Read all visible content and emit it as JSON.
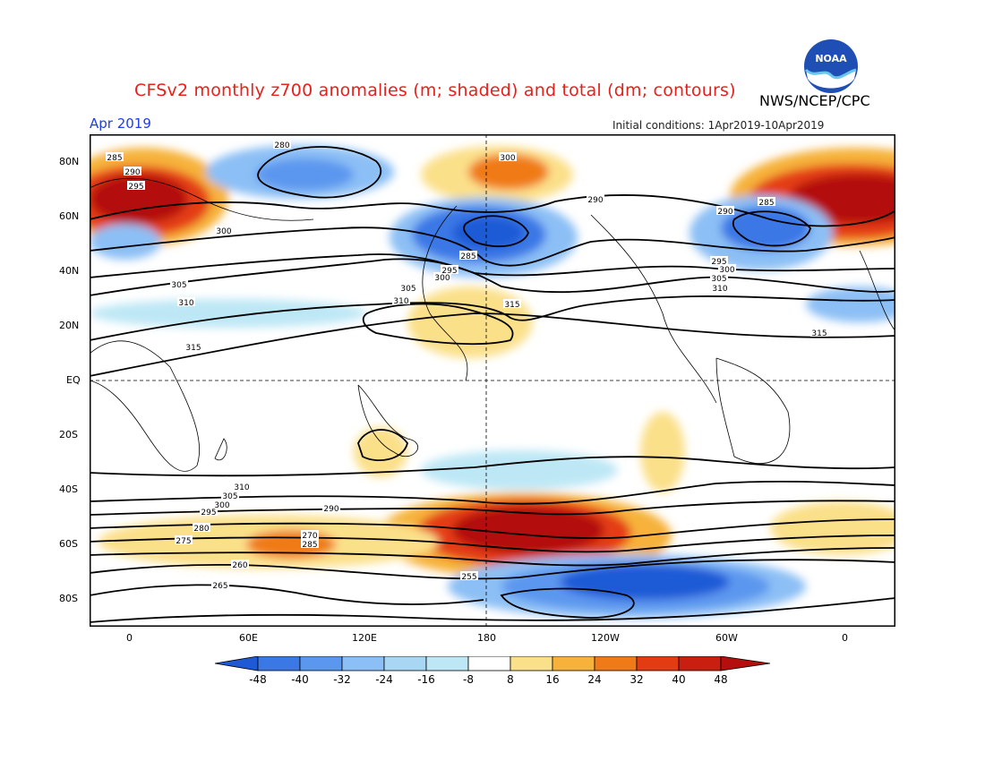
{
  "header": {
    "title": "CFSv2 monthly z700 anomalies (m; shaded) and total (dm; contours)",
    "agency": "NWS/NCEP/CPC",
    "period": "Apr 2019",
    "initial_conditions": "Initial conditions: 1Apr2019-10Apr2019",
    "logo_text": "NOAA"
  },
  "colors": {
    "title": "#e8201b",
    "period": "#2040e0",
    "shades": [
      "#1e5ad6",
      "#3a78e6",
      "#5c97ef",
      "#8cbff5",
      "#bde7f5",
      "#ffffff",
      "#ffffff",
      "#fbe08a",
      "#f6b23a",
      "#f07a17",
      "#e43c12",
      "#b40e0e"
    ]
  },
  "map": {
    "lat_labels": [
      "80N",
      "60N",
      "40N",
      "20N",
      "EQ",
      "20S",
      "40S",
      "60S",
      "80S"
    ],
    "lon_labels": [
      "0",
      "60E",
      "120E",
      "180",
      "120W",
      "60W",
      "0"
    ]
  },
  "colorbar": {
    "labels": [
      "-48",
      "-40",
      "-32",
      "-24",
      "-16",
      "-8",
      "8",
      "16",
      "24",
      "32",
      "40",
      "48"
    ]
  },
  "contour_labels": [
    "280",
    "285",
    "290",
    "295",
    "300",
    "305",
    "310",
    "315",
    "290",
    "300",
    "305",
    "310",
    "315",
    "285",
    "295",
    "300",
    "285",
    "290",
    "295",
    "300",
    "305",
    "310",
    "315",
    "255",
    "260",
    "265",
    "270",
    "275",
    "280",
    "285",
    "290",
    "295",
    "300",
    "305",
    "310"
  ]
}
